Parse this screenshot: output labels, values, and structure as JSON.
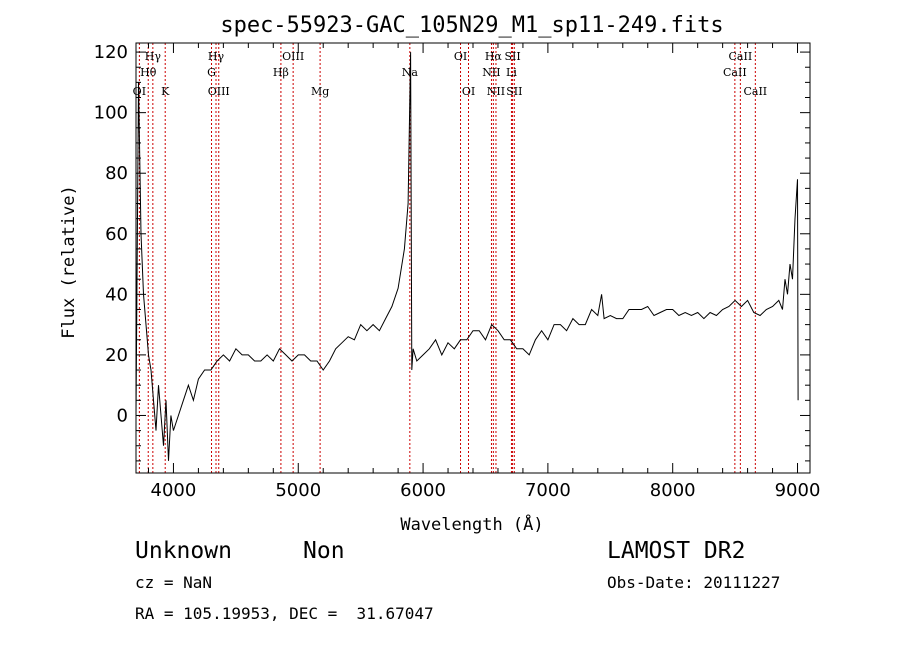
{
  "chart_data": {
    "type": "line",
    "title": "spec-55923-GAC_105N29_M1_sp11-249.fits",
    "xlabel": "Wavelength (Å)",
    "ylabel": "Flux (relative)",
    "xlim": [
      3700,
      9100
    ],
    "ylim": [
      -19,
      123
    ],
    "xticks": [
      "4000",
      "5000",
      "6000",
      "7000",
      "8000",
      "9000"
    ],
    "yticks": [
      "0",
      "20",
      "40",
      "60",
      "80",
      "100",
      "120"
    ],
    "grid": false,
    "line_color": "#000000",
    "marker_color": "#cc0000",
    "spectrum": {
      "x": [
        3700,
        3720,
        3740,
        3760,
        3780,
        3800,
        3820,
        3840,
        3860,
        3880,
        3900,
        3920,
        3940,
        3960,
        3980,
        4000,
        4040,
        4080,
        4120,
        4160,
        4200,
        4250,
        4300,
        4350,
        4400,
        4450,
        4500,
        4550,
        4600,
        4650,
        4700,
        4750,
        4800,
        4850,
        4900,
        4950,
        5000,
        5050,
        5100,
        5150,
        5200,
        5250,
        5300,
        5350,
        5400,
        5450,
        5500,
        5550,
        5600,
        5650,
        5700,
        5750,
        5800,
        5850,
        5880,
        5900,
        5910,
        5920,
        5950,
        6000,
        6050,
        6100,
        6150,
        6200,
        6250,
        6300,
        6350,
        6400,
        6450,
        6500,
        6550,
        6600,
        6650,
        6700,
        6750,
        6800,
        6850,
        6900,
        6950,
        7000,
        7050,
        7100,
        7150,
        7200,
        7250,
        7300,
        7350,
        7400,
        7430,
        7450,
        7500,
        7550,
        7600,
        7650,
        7700,
        7750,
        7800,
        7850,
        7900,
        7950,
        8000,
        8050,
        8100,
        8150,
        8200,
        8250,
        8300,
        8350,
        8400,
        8450,
        8500,
        8550,
        8600,
        8650,
        8700,
        8750,
        8800,
        8850,
        8880,
        8900,
        8920,
        8940,
        8960,
        8980,
        9000,
        9005
      ],
      "y": [
        0,
        110,
        60,
        40,
        30,
        20,
        15,
        5,
        -5,
        10,
        0,
        -10,
        5,
        -15,
        0,
        -5,
        0,
        5,
        10,
        5,
        12,
        15,
        15,
        18,
        20,
        18,
        22,
        20,
        20,
        18,
        18,
        20,
        18,
        22,
        20,
        18,
        20,
        20,
        18,
        18,
        15,
        18,
        22,
        24,
        26,
        25,
        30,
        28,
        30,
        28,
        32,
        36,
        42,
        55,
        70,
        120,
        15,
        22,
        18,
        20,
        22,
        25,
        20,
        24,
        22,
        25,
        25,
        28,
        28,
        25,
        30,
        28,
        25,
        25,
        22,
        22,
        20,
        25,
        28,
        25,
        30,
        30,
        28,
        32,
        30,
        30,
        35,
        33,
        40,
        32,
        33,
        32,
        32,
        35,
        35,
        35,
        36,
        33,
        34,
        35,
        35,
        33,
        34,
        33,
        34,
        32,
        34,
        33,
        35,
        36,
        38,
        36,
        38,
        34,
        33,
        35,
        36,
        38,
        35,
        45,
        40,
        50,
        45,
        65,
        78,
        5
      ]
    },
    "lines": [
      {
        "name": "OI",
        "x": 3727,
        "row": 2
      },
      {
        "name": "Hθ",
        "x": 3798,
        "row": 1
      },
      {
        "name": "Hγ",
        "x": 3835,
        "row": 0
      },
      {
        "name": "K",
        "x": 3934,
        "row": 2
      },
      {
        "name": "Hγ",
        "x": 4341,
        "row": 0
      },
      {
        "name": "G",
        "x": 4305,
        "row": 1
      },
      {
        "name": "OIII",
        "x": 4363,
        "row": 2
      },
      {
        "name": "OIII",
        "x": 4959,
        "row": 0
      },
      {
        "name": "Hβ",
        "x": 4861,
        "row": 1
      },
      {
        "name": "Mg",
        "x": 5175,
        "row": 2
      },
      {
        "name": "Na",
        "x": 5894,
        "row": 1
      },
      {
        "name": "OI",
        "x": 6300,
        "row": 0
      },
      {
        "name": "OI",
        "x": 6364,
        "row": 2
      },
      {
        "name": "Hα",
        "x": 6563,
        "row": 0
      },
      {
        "name": "SII",
        "x": 6717,
        "row": 0
      },
      {
        "name": "NII",
        "x": 6548,
        "row": 1
      },
      {
        "name": "Li",
        "x": 6708,
        "row": 1
      },
      {
        "name": "NII",
        "x": 6584,
        "row": 2
      },
      {
        "name": "SII",
        "x": 6731,
        "row": 2
      },
      {
        "name": "CaII",
        "x": 8542,
        "row": 0
      },
      {
        "name": "CaII",
        "x": 8498,
        "row": 1
      },
      {
        "name": "CaII",
        "x": 8662,
        "row": 2
      }
    ]
  },
  "info": {
    "class": "Unknown",
    "subclass": "Non",
    "survey": "LAMOST DR2",
    "cz": "cz = NaN",
    "obsdate": "Obs-Date: 20111227",
    "radec": "RA = 105.19953, DEC =  31.67047"
  }
}
